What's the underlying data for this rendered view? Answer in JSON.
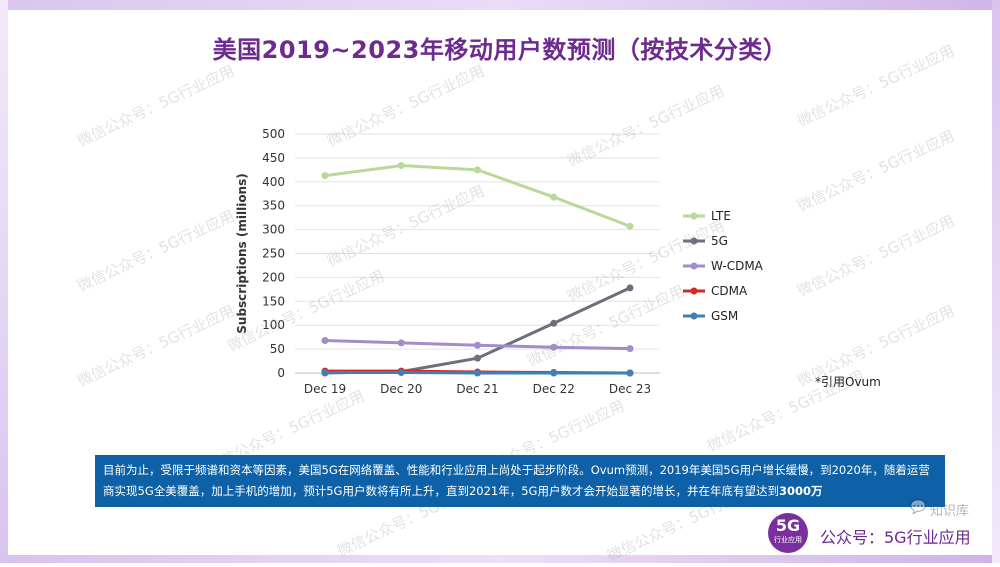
{
  "title": "美国2019~2023年移动用户数预测（按技术分类）",
  "source": "*引用Ovum",
  "description": {
    "part1": "目前为止，受限于频谱和资本等因素，美国5G在网络覆盖、性能和行业应用上尚处于起步阶段。Ovum预测，2019年美国5G用户增长缓慢，到2020年，随着运营商实现5G全美覆盖，加上手机的增加，预计5G用户数将有所上升，直到2021年，5G用户数才会开始显著的增长，并在年底有望达到",
    "highlight": "3000万"
  },
  "badge": {
    "big": "5G",
    "small": "行业应用"
  },
  "footer_name": "公众号：5G行业应用",
  "corner_watermark": "知识库",
  "watermark_text": "微信公众号：5G行业应用",
  "colors": {
    "title": "#6e2b8f",
    "desc_bg": "#0e61a6",
    "LTE": "#b7d99a",
    "5G": "#6b6f7c",
    "W-CDMA": "#a48bcb",
    "CDMA": "#d62728",
    "GSM": "#3e7fb4"
  },
  "chart_data": {
    "type": "line",
    "title": "",
    "xlabel": "",
    "ylabel": "Subscriptions (millions)",
    "x": [
      "Dec 19",
      "Dec 20",
      "Dec 21",
      "Dec 22",
      "Dec 23"
    ],
    "ylim": [
      0,
      500
    ],
    "yticks": [
      0,
      50,
      100,
      150,
      200,
      250,
      300,
      350,
      400,
      450,
      500
    ],
    "grid": true,
    "legend": "right",
    "series": [
      {
        "name": "LTE",
        "values": [
          413,
          434,
          425,
          368,
          307
        ]
      },
      {
        "name": "5G",
        "values": [
          0,
          3,
          31,
          104,
          178
        ]
      },
      {
        "name": "W-CDMA",
        "values": [
          68,
          63,
          58,
          54,
          51
        ]
      },
      {
        "name": "CDMA",
        "values": [
          4,
          4,
          2,
          1,
          0
        ]
      },
      {
        "name": "GSM",
        "values": [
          1,
          1,
          0,
          0,
          0
        ]
      }
    ]
  }
}
